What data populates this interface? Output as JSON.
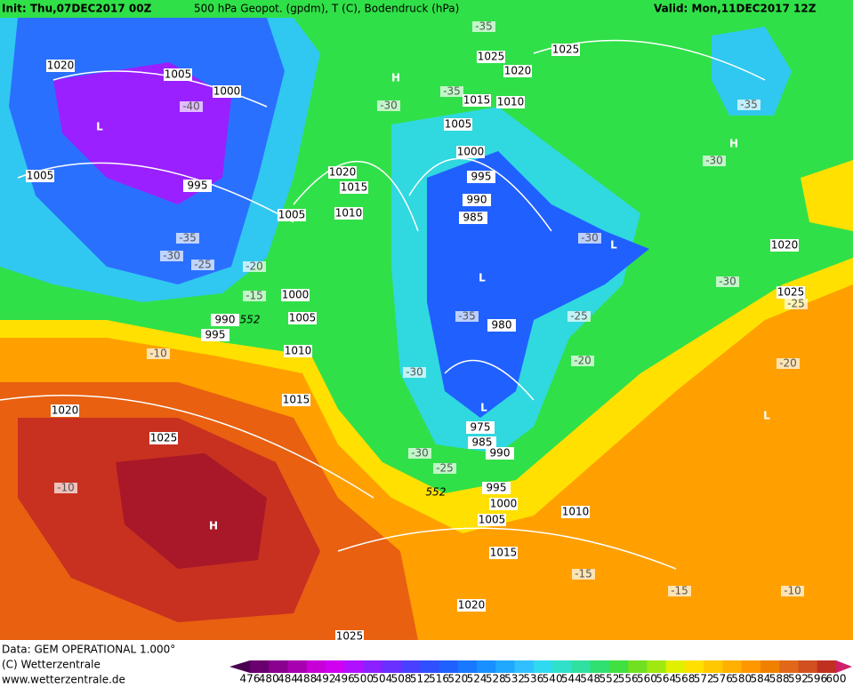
{
  "header": {
    "init": "Init: Thu,07DEC2017 00Z",
    "title": "500 hPa Geopot. (gpdm), T (C), Bodendruck (hPa)",
    "valid": "Valid: Mon,11DEC2017 12Z"
  },
  "footer": {
    "source": "Data: GEM OPERATIONAL 1.000°",
    "copyright": "(C) Wetterzentrale",
    "url": "www.wetterzentrale.de"
  },
  "colorbar": {
    "labels": [
      476,
      480,
      484,
      488,
      492,
      496,
      500,
      504,
      508,
      512,
      516,
      520,
      524,
      528,
      532,
      536,
      540,
      544,
      548,
      552,
      556,
      560,
      564,
      568,
      572,
      576,
      580,
      584,
      588,
      592,
      596,
      600
    ]
  },
  "pressure_labels": [
    "1020",
    "1005",
    "1000",
    "1005",
    "995",
    "1020",
    "1015",
    "1010",
    "1005",
    "1000",
    "990",
    "1005",
    "995",
    "1010",
    "1015",
    "1020",
    "1025",
    "1025",
    "1025",
    "1020",
    "1015",
    "1010",
    "1005",
    "1000",
    "995",
    "990",
    "985",
    "980",
    "975",
    "985",
    "990",
    "995",
    "1000",
    "1005",
    "1010",
    "1015",
    "1020",
    "1025",
    "1020",
    "1025"
  ],
  "temperature_labels": [
    "-40",
    "-30",
    "-35",
    "-35",
    "-35",
    "-30",
    "-35",
    "-30",
    "-25",
    "-20",
    "-15",
    "-10",
    "-30",
    "-30",
    "-25",
    "-25",
    "-35",
    "-20",
    "-30",
    "-20",
    "-30",
    "-25",
    "-10",
    "-15",
    "-15",
    "-10"
  ],
  "centers": [
    "L",
    "H",
    "H",
    "L",
    "L",
    "L",
    "L",
    "H"
  ],
  "height_labels": [
    "552",
    "552"
  ]
}
